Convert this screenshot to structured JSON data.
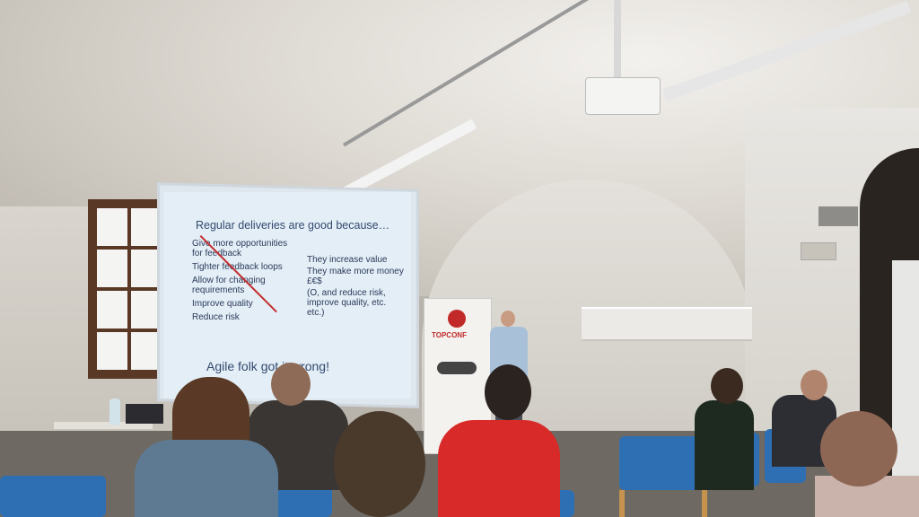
{
  "slide": {
    "title": "Regular deliveries are good because…",
    "left_points": [
      "Give more opportunities for feedback",
      "Tighter feedback loops",
      "Allow for changing requirements",
      "Improve quality",
      "Reduce risk"
    ],
    "right_points": [
      "They increase value",
      "They make more money £€$",
      "(O, and reduce risk, improve quality, etc. etc.)"
    ],
    "footer": "Agile folk got it wrong!"
  },
  "banner": {
    "brand": "TOPCONF"
  },
  "colors": {
    "slide_text": "#2b3a5a",
    "strike_line": "#c32c2c",
    "chair_blue": "#2e6fb4",
    "banner_red": "#c22a2a"
  }
}
